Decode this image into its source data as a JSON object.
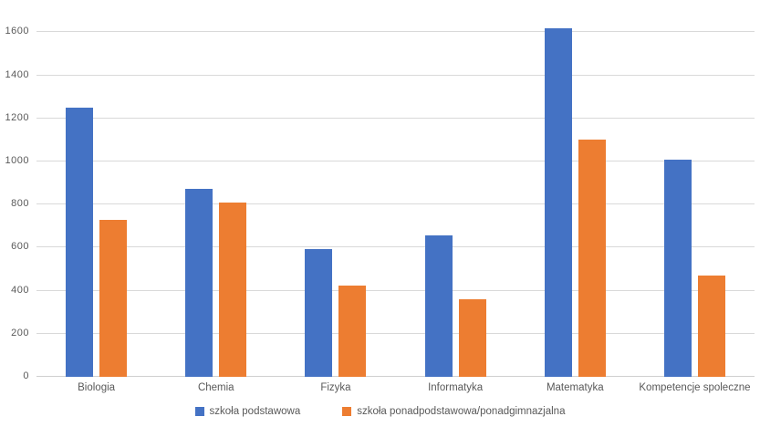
{
  "chart_data": {
    "type": "bar",
    "title": "",
    "categories": [
      "Biologia",
      "Chemia",
      "Fizyka",
      "Informatyka",
      "Matematyka",
      "Kompetencje spoleczne"
    ],
    "series": [
      {
        "name": "szkoła podstawowa",
        "color": "#4472C4",
        "values": [
          1250,
          875,
          595,
          655,
          1620,
          1010
        ]
      },
      {
        "name": "szkoła ponadpodstawowa/ponadgimnazjalna",
        "color": "#ED7D31",
        "values": [
          730,
          810,
          425,
          360,
          1100,
          470
        ]
      }
    ],
    "xlabel": "",
    "ylabel": "",
    "ylim": [
      0,
      1600
    ],
    "ytick_step": 200,
    "yticks": [
      0,
      200,
      400,
      600,
      800,
      1000,
      1200,
      1400,
      1600
    ],
    "grid": true,
    "legend_position": "bottom",
    "colors": {
      "gridline": "#d9d9d9",
      "axis_line": "#d0d0d0",
      "tick_text": "#595959",
      "background": "#ffffff"
    }
  }
}
